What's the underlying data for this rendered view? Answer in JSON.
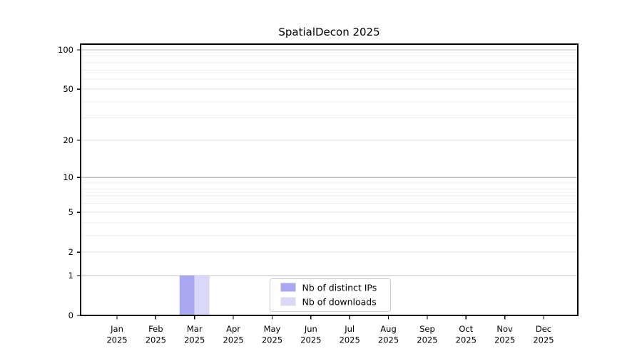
{
  "chart_data": {
    "type": "bar",
    "title": "SpatialDecon 2025",
    "categories": [
      {
        "month": "Jan",
        "year": "2025"
      },
      {
        "month": "Feb",
        "year": "2025"
      },
      {
        "month": "Mar",
        "year": "2025"
      },
      {
        "month": "Apr",
        "year": "2025"
      },
      {
        "month": "May",
        "year": "2025"
      },
      {
        "month": "Jun",
        "year": "2025"
      },
      {
        "month": "Jul",
        "year": "2025"
      },
      {
        "month": "Aug",
        "year": "2025"
      },
      {
        "month": "Sep",
        "year": "2025"
      },
      {
        "month": "Oct",
        "year": "2025"
      },
      {
        "month": "Nov",
        "year": "2025"
      },
      {
        "month": "Dec",
        "year": "2025"
      }
    ],
    "series": [
      {
        "name": "Nb of distinct IPs",
        "color": "#a8a8f0",
        "values": [
          0,
          0,
          1,
          0,
          0,
          0,
          0,
          0,
          0,
          0,
          0,
          0
        ]
      },
      {
        "name": "Nb of downloads",
        "color": "#d9d9f7",
        "values": [
          0,
          0,
          1,
          0,
          0,
          0,
          0,
          0,
          0,
          0,
          0,
          0
        ]
      }
    ],
    "yscale": "log1p",
    "ylim": [
      0,
      110
    ],
    "y_major_ticks": [
      0,
      1,
      2,
      5,
      10,
      20,
      50,
      100
    ],
    "y_minor_ticks": [
      3,
      4,
      6,
      7,
      8,
      9,
      30,
      40,
      60,
      70,
      80,
      90
    ],
    "y_emphasized_gridlines": [
      1,
      10,
      100
    ],
    "grid": true,
    "legend_position": "lower center",
    "xlabel": "",
    "ylabel": ""
  },
  "colors": {
    "grid_minor": "#ececec",
    "grid_major": "#e1e1e1",
    "grid_power10": "#c0c0c0",
    "spine": "#000000",
    "legend_border": "#cccccc",
    "legend_background": "#ffffff",
    "text": "#000000"
  }
}
